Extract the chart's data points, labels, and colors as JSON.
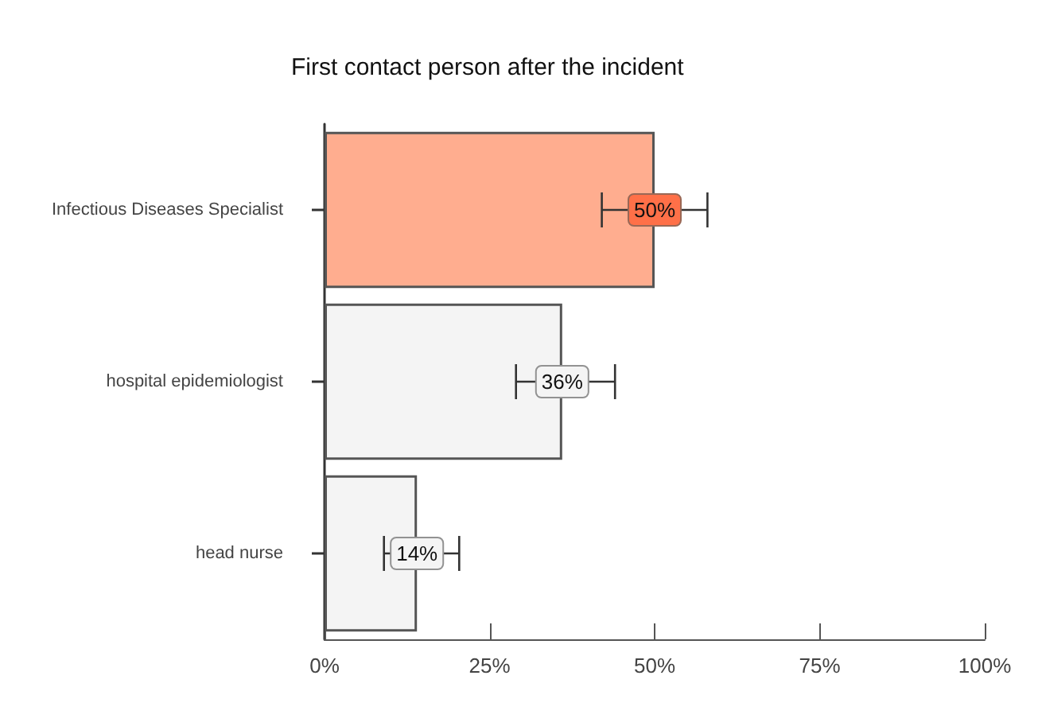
{
  "chart_data": {
    "type": "bar",
    "orientation": "horizontal",
    "title": "First contact person after the incident",
    "categories": [
      "Infectious Diseases Specialist",
      "hospital epidemiologist",
      "head nurse"
    ],
    "values": [
      50,
      36,
      14
    ],
    "value_labels": [
      "50%",
      "36%",
      "14%"
    ],
    "colors": [
      "#ffad8f",
      "#f4f4f4",
      "#f4f4f4"
    ],
    "errors": [
      [
        42,
        58
      ],
      [
        29,
        44
      ],
      [
        9,
        20.4
      ]
    ],
    "xlim": [
      0,
      100
    ],
    "xticks": [
      {
        "value": 0,
        "label": "0%"
      },
      {
        "value": 25,
        "label": "25%"
      },
      {
        "value": 50,
        "label": "50%"
      },
      {
        "value": 75,
        "label": "75%"
      },
      {
        "value": 100,
        "label": "100%"
      }
    ]
  }
}
